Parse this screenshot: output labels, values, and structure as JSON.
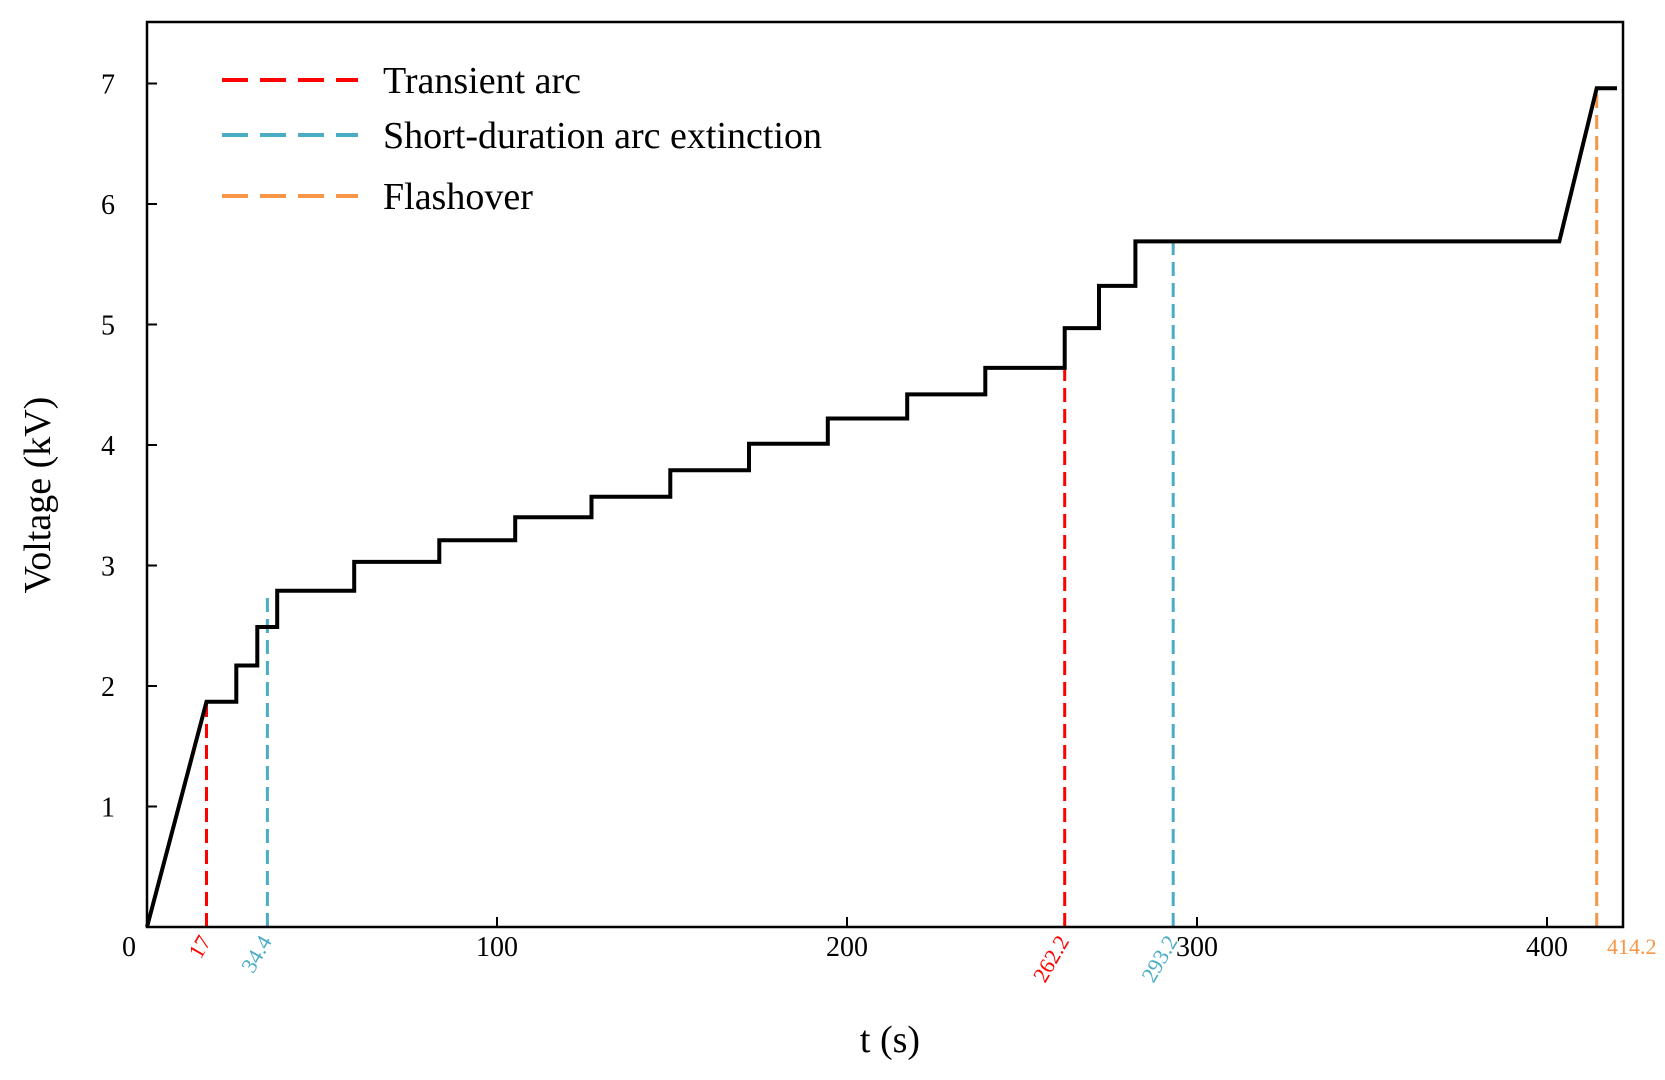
{
  "chart_data": {
    "type": "line",
    "xlabel": "t (s)",
    "ylabel": "Voltage (kV)",
    "xlim": [
      0,
      420
    ],
    "ylim": [
      0,
      7.5
    ],
    "x_ticks": [
      0,
      100,
      200,
      300,
      400
    ],
    "x_tick_labels": [
      "0",
      "100",
      "200",
      "300",
      "400"
    ],
    "y_ticks": [
      1,
      2,
      3,
      4,
      5,
      6,
      7
    ],
    "y_tick_labels": [
      "1",
      "2",
      "3",
      "4",
      "5",
      "6",
      "7"
    ],
    "grid": false,
    "legend_position": "top-left",
    "series": [
      {
        "name": "Voltage",
        "color": "#000000",
        "x": [
          0,
          17,
          25.5,
          25.5,
          31.5,
          31.5,
          37.2,
          37.2,
          59.2,
          59.2,
          83.5,
          83.5,
          105.2,
          105.2,
          127,
          127,
          149.5,
          149.5,
          172,
          172,
          194.5,
          194.5,
          217.2,
          217.2,
          239.5,
          239.5,
          262.2,
          262.2,
          272,
          272,
          282.4,
          282.4,
          403.5,
          414.2,
          420
        ],
        "y": [
          0,
          1.87,
          1.87,
          2.17,
          2.17,
          2.49,
          2.49,
          2.79,
          2.79,
          3.03,
          3.03,
          3.21,
          3.21,
          3.4,
          3.4,
          3.57,
          3.57,
          3.79,
          3.79,
          4.01,
          4.01,
          4.22,
          4.22,
          4.42,
          4.42,
          4.64,
          4.64,
          4.97,
          4.97,
          5.32,
          5.32,
          5.69,
          5.69,
          6.96,
          6.96
        ]
      }
    ],
    "events": [
      {
        "type": "Transient arc",
        "t": 17,
        "label": "17",
        "v": 1.87
      },
      {
        "type": "Short-duration arc extinction",
        "t": 34.4,
        "label": "34.4",
        "v": 2.78
      },
      {
        "type": "Transient arc",
        "t": 262.2,
        "label": "262.2",
        "v": 4.97
      },
      {
        "type": "Short-duration arc extinction",
        "t": 293.2,
        "label": "293.2",
        "v": 5.69
      },
      {
        "type": "Flashover",
        "t": 414.2,
        "label": "414.2",
        "v": 6.96
      }
    ],
    "legend": [
      {
        "label": "Transient arc",
        "color": "#ff0000"
      },
      {
        "label": "Short-duration arc extinction",
        "color": "#4bacc6"
      },
      {
        "label": "Flashover",
        "color": "#f79646"
      }
    ]
  }
}
